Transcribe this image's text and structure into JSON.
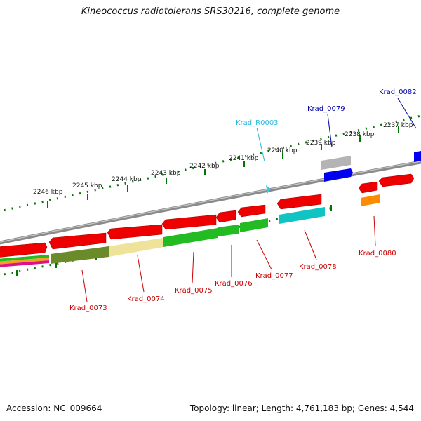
{
  "title": "Kineococcus radiotolerans SRS30216, complete genome",
  "footer": {
    "accession": "Accession: NC_009664",
    "summary": "Topology: linear; Length: 4,761,183 bp; Genes: 4,544"
  },
  "ruler": {
    "ticks": [
      "2246 kbp",
      "2245 kbp",
      "2244 kbp",
      "2243 kbp",
      "2242 kbp",
      "2241 kbp",
      "2240 kbp",
      "2239 kbp",
      "2238 kbp",
      "2237 kbp"
    ]
  },
  "gene_labels": {
    "krad_0073": "Krad_0073",
    "krad_0074": "Krad_0074",
    "krad_0075": "Krad_0075",
    "krad_0076": "Krad_0076",
    "krad_0077": "Krad_0077",
    "krad_0078": "Krad_0078",
    "krad_0079": "Krad_0079",
    "krad_0080": "Krad_0080",
    "krad_0082": "Krad_0082",
    "krad_r0003": "Krad_R0003"
  },
  "colors": {
    "backbone": "#8a8a8a",
    "gene_red": "#ee0000",
    "gene_green": "#22bb22",
    "gene_olive": "#6b8a2a",
    "gene_khaki": "#efe39a",
    "gene_cyan": "#11c4c4",
    "gene_grey": "#b4b4b4",
    "gene_blue": "#0000ee",
    "gene_orange": "#ff8c00",
    "rna_cyan": "#33ccee",
    "label_red": "#cc0000",
    "label_blue": "#0000aa",
    "label_cyan": "#22bbdd",
    "ruler_green": "#007700"
  }
}
